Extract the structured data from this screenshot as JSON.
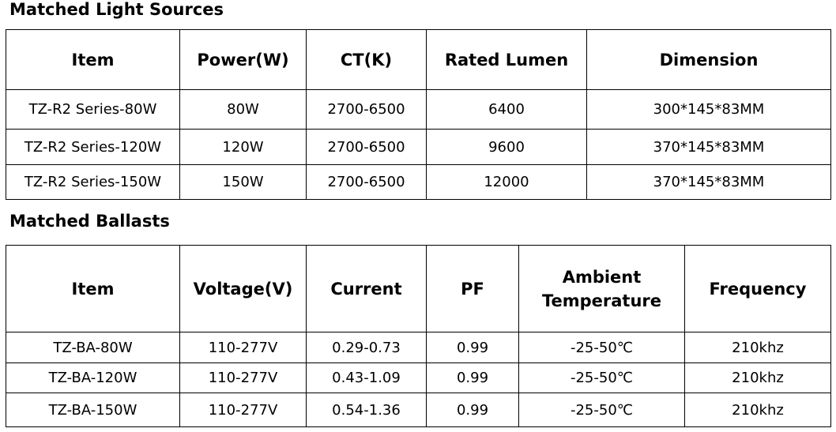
{
  "sections": [
    {
      "title": "Matched Light Sources",
      "table": {
        "header": [
          "Item",
          "Power(W)",
          "CT(K)",
          "Rated Lumen",
          "Dimension"
        ],
        "rows": [
          [
            "TZ-R2 Series-80W",
            "80W",
            "2700-6500",
            "6400",
            "300*145*83MM"
          ],
          [
            "TZ-R2 Series-120W",
            "120W",
            "2700-6500",
            "9600",
            "370*145*83MM"
          ],
          [
            "TZ-R2 Series-150W",
            "150W",
            "2700-6500",
            "12000",
            "370*145*83MM"
          ]
        ]
      }
    },
    {
      "title": "Matched Ballasts",
      "table": {
        "header": [
          "Item",
          "Voltage(V)",
          "Current",
          "PF",
          "Ambient Temperature",
          "Frequency"
        ],
        "rows": [
          [
            "TZ-BA-80W",
            "110-277V",
            "0.29-0.73",
            "0.99",
            "-25-50℃",
            "210khz"
          ],
          [
            "TZ-BA-120W",
            "110-277V",
            "0.43-1.09",
            "0.99",
            "-25-50℃",
            "210khz"
          ],
          [
            "TZ-BA-150W",
            "110-277V",
            "0.54-1.36",
            "0.99",
            "-25-50℃",
            "210khz"
          ]
        ]
      }
    }
  ]
}
